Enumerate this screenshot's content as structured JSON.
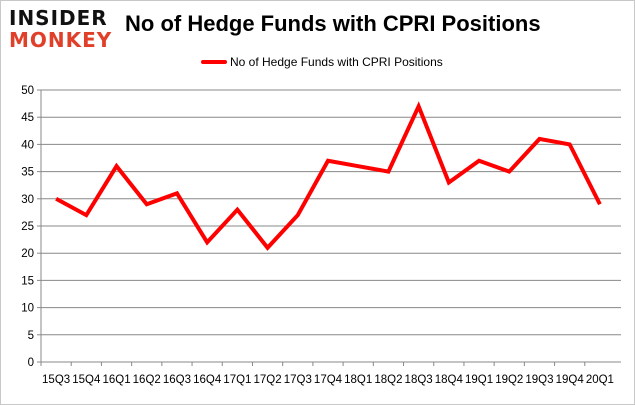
{
  "logo": {
    "line1": "INSIDER",
    "line2": "MONKEY"
  },
  "chart_data": {
    "type": "line",
    "title": "No of Hedge Funds with CPRI Positions",
    "categories": [
      "15Q3",
      "15Q4",
      "16Q1",
      "16Q2",
      "16Q3",
      "16Q4",
      "17Q1",
      "17Q2",
      "17Q3",
      "17Q4",
      "18Q1",
      "18Q2",
      "18Q3",
      "18Q4",
      "19Q1",
      "19Q2",
      "19Q3",
      "19Q4",
      "20Q1"
    ],
    "series": [
      {
        "name": "No of Hedge Funds with CPRI Positions",
        "color": "#ff0000",
        "values": [
          30,
          27,
          36,
          29,
          31,
          22,
          28,
          21,
          27,
          37,
          36,
          35,
          47,
          33,
          37,
          35,
          41,
          40,
          29
        ]
      }
    ],
    "ylim": [
      0,
      50
    ],
    "yticks": [
      "0",
      "5",
      "10",
      "15",
      "20",
      "25",
      "30",
      "35",
      "40",
      "45",
      "50"
    ],
    "grid": true,
    "legend": "top"
  }
}
